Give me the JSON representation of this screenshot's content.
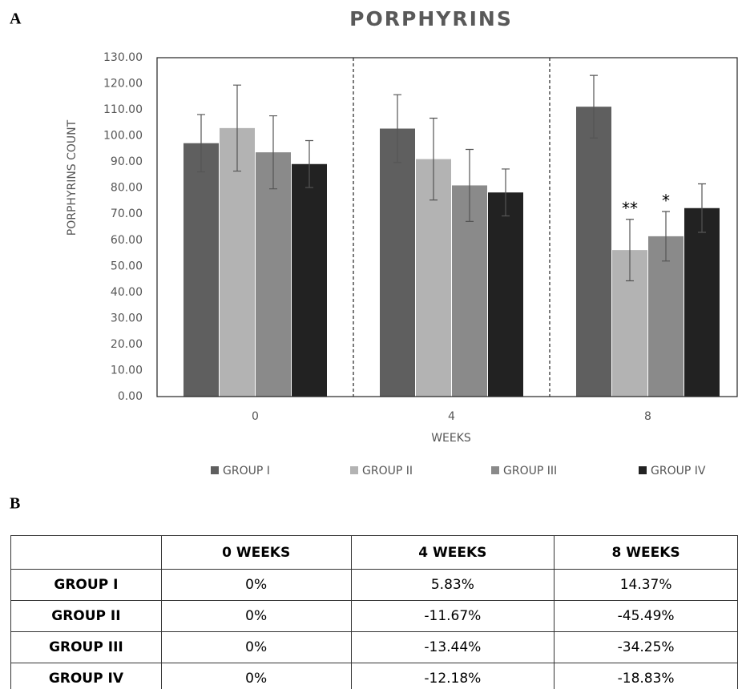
{
  "chart_data": {
    "type": "bar",
    "panel_label": "A",
    "title": "PORPHYRINS",
    "y_label": "PORPHYRINS COUNT",
    "x_label": "WEEKS",
    "categories": [
      "0",
      "4",
      "8"
    ],
    "series": [
      {
        "name": "GROUP I",
        "color": "#5f5f5f",
        "values": [
          97.2,
          102.8,
          111.2
        ],
        "errors": [
          11,
          13,
          12
        ]
      },
      {
        "name": "GROUP II",
        "color": "#b3b3b3",
        "values": [
          103,
          91.1,
          56.2
        ],
        "errors": [
          16.5,
          15.7,
          11.8
        ]
      },
      {
        "name": "GROUP III",
        "color": "#8a8a8a",
        "values": [
          93.7,
          81,
          61.5
        ],
        "errors": [
          14,
          13.8,
          9.5
        ]
      },
      {
        "name": "GROUP IV",
        "color": "#222222",
        "values": [
          89.2,
          78.3,
          72.3
        ],
        "errors": [
          9,
          9,
          9.3
        ]
      }
    ],
    "annotations": [
      {
        "text": "**",
        "series": 1,
        "category": 2
      },
      {
        "text": "*",
        "series": 2,
        "category": 2
      }
    ],
    "ylim": [
      0,
      130
    ],
    "yticks": [
      {
        "value": 0,
        "label": "0.00"
      },
      {
        "value": 10,
        "label": "10.00"
      },
      {
        "value": 20,
        "label": "20.00"
      },
      {
        "value": 30,
        "label": "30.00"
      },
      {
        "value": 40,
        "label": "40.00"
      },
      {
        "value": 50,
        "label": "50.00"
      },
      {
        "value": 60,
        "label": "60.00"
      },
      {
        "value": 70,
        "label": "70.00"
      },
      {
        "value": 80,
        "label": "80.00"
      },
      {
        "value": 90,
        "label": "90.00"
      },
      {
        "value": 100,
        "label": "100.00"
      },
      {
        "value": 110,
        "label": "110.00"
      },
      {
        "value": 120,
        "label": "120.00"
      },
      {
        "value": 130,
        "label": "130.00"
      }
    ],
    "grid": false,
    "legend": "bottom"
  },
  "table": {
    "panel_label": "B",
    "columns": [
      "0 WEEKS",
      "4 WEEKS",
      "8 WEEKS"
    ],
    "rows": [
      [
        "GROUP I",
        "0%",
        "5.83%",
        "14.37%"
      ],
      [
        "GROUP II",
        "0%",
        "-11.67%",
        "-45.49%"
      ],
      [
        "GROUP III",
        "0%",
        "-13.44%",
        "-34.25%"
      ],
      [
        "GROUP IV",
        "0%",
        "-12.18%",
        "-18.83%"
      ]
    ]
  }
}
